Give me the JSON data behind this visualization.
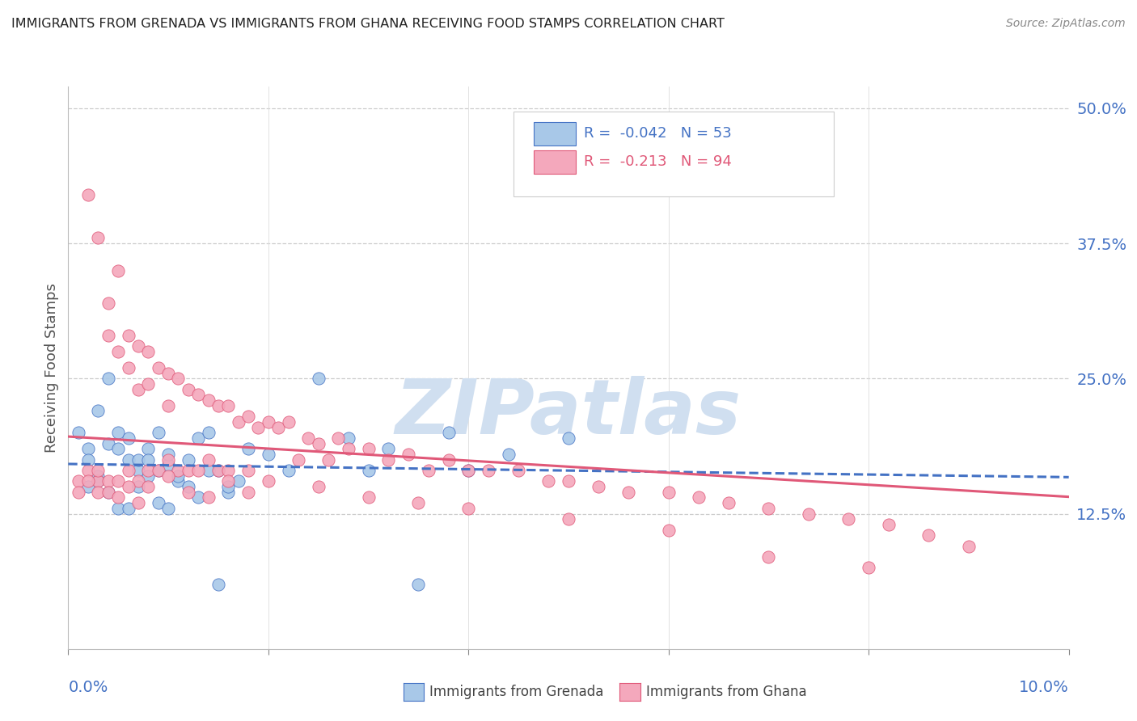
{
  "title": "IMMIGRANTS FROM GRENADA VS IMMIGRANTS FROM GHANA RECEIVING FOOD STAMPS CORRELATION CHART",
  "source": "Source: ZipAtlas.com",
  "ylabel": "Receiving Food Stamps",
  "ytick_vals": [
    0.125,
    0.25,
    0.375,
    0.5
  ],
  "ytick_labels": [
    "12.5%",
    "25.0%",
    "37.5%",
    "50.0%"
  ],
  "xlim": [
    0.0,
    0.1
  ],
  "ylim": [
    0.0,
    0.52
  ],
  "grenada_R": -0.042,
  "grenada_N": 53,
  "ghana_R": -0.213,
  "ghana_N": 94,
  "grenada_scatter_color": "#a8c8e8",
  "ghana_scatter_color": "#f4a8bc",
  "grenada_line_color": "#4472c4",
  "ghana_line_color": "#e05878",
  "watermark_color": "#d0dff0",
  "background_color": "#ffffff",
  "grid_color": "#cccccc",
  "title_color": "#222222",
  "axis_tick_color": "#4472c4",
  "grenada_x": [
    0.001,
    0.002,
    0.002,
    0.003,
    0.003,
    0.004,
    0.004,
    0.005,
    0.005,
    0.006,
    0.006,
    0.007,
    0.007,
    0.008,
    0.008,
    0.009,
    0.009,
    0.01,
    0.01,
    0.011,
    0.012,
    0.013,
    0.014,
    0.015,
    0.016,
    0.017,
    0.018,
    0.02,
    0.022,
    0.025,
    0.028,
    0.032,
    0.038,
    0.044,
    0.05,
    0.002,
    0.003,
    0.004,
    0.005,
    0.006,
    0.007,
    0.008,
    0.009,
    0.01,
    0.011,
    0.012,
    0.013,
    0.014,
    0.015,
    0.016,
    0.03,
    0.035,
    0.04
  ],
  "grenada_y": [
    0.2,
    0.185,
    0.175,
    0.22,
    0.16,
    0.25,
    0.19,
    0.2,
    0.185,
    0.175,
    0.195,
    0.165,
    0.175,
    0.185,
    0.175,
    0.2,
    0.165,
    0.17,
    0.18,
    0.155,
    0.175,
    0.195,
    0.2,
    0.165,
    0.145,
    0.155,
    0.185,
    0.18,
    0.165,
    0.25,
    0.195,
    0.185,
    0.2,
    0.18,
    0.195,
    0.15,
    0.155,
    0.145,
    0.13,
    0.13,
    0.15,
    0.16,
    0.135,
    0.13,
    0.16,
    0.15,
    0.14,
    0.165,
    0.06,
    0.15,
    0.165,
    0.06,
    0.165
  ],
  "ghana_x": [
    0.001,
    0.001,
    0.002,
    0.002,
    0.003,
    0.003,
    0.003,
    0.004,
    0.004,
    0.004,
    0.005,
    0.005,
    0.005,
    0.006,
    0.006,
    0.006,
    0.007,
    0.007,
    0.007,
    0.008,
    0.008,
    0.008,
    0.009,
    0.009,
    0.01,
    0.01,
    0.01,
    0.011,
    0.011,
    0.012,
    0.012,
    0.013,
    0.013,
    0.014,
    0.014,
    0.015,
    0.015,
    0.016,
    0.016,
    0.017,
    0.018,
    0.018,
    0.019,
    0.02,
    0.021,
    0.022,
    0.023,
    0.024,
    0.025,
    0.026,
    0.027,
    0.028,
    0.03,
    0.032,
    0.034,
    0.036,
    0.038,
    0.04,
    0.042,
    0.045,
    0.048,
    0.05,
    0.053,
    0.056,
    0.06,
    0.063,
    0.066,
    0.07,
    0.074,
    0.078,
    0.082,
    0.086,
    0.09,
    0.002,
    0.003,
    0.004,
    0.005,
    0.006,
    0.007,
    0.008,
    0.01,
    0.012,
    0.014,
    0.016,
    0.018,
    0.02,
    0.025,
    0.03,
    0.035,
    0.04,
    0.05,
    0.06,
    0.07,
    0.08
  ],
  "ghana_y": [
    0.155,
    0.145,
    0.42,
    0.165,
    0.38,
    0.155,
    0.145,
    0.32,
    0.29,
    0.155,
    0.35,
    0.275,
    0.155,
    0.29,
    0.26,
    0.165,
    0.28,
    0.24,
    0.155,
    0.275,
    0.245,
    0.165,
    0.26,
    0.165,
    0.255,
    0.225,
    0.175,
    0.25,
    0.165,
    0.24,
    0.165,
    0.235,
    0.165,
    0.23,
    0.175,
    0.225,
    0.165,
    0.225,
    0.165,
    0.21,
    0.215,
    0.165,
    0.205,
    0.21,
    0.205,
    0.21,
    0.175,
    0.195,
    0.19,
    0.175,
    0.195,
    0.185,
    0.185,
    0.175,
    0.18,
    0.165,
    0.175,
    0.165,
    0.165,
    0.165,
    0.155,
    0.155,
    0.15,
    0.145,
    0.145,
    0.14,
    0.135,
    0.13,
    0.125,
    0.12,
    0.115,
    0.105,
    0.095,
    0.155,
    0.165,
    0.145,
    0.14,
    0.15,
    0.135,
    0.15,
    0.16,
    0.145,
    0.14,
    0.155,
    0.145,
    0.155,
    0.15,
    0.14,
    0.135,
    0.13,
    0.12,
    0.11,
    0.085,
    0.075
  ]
}
